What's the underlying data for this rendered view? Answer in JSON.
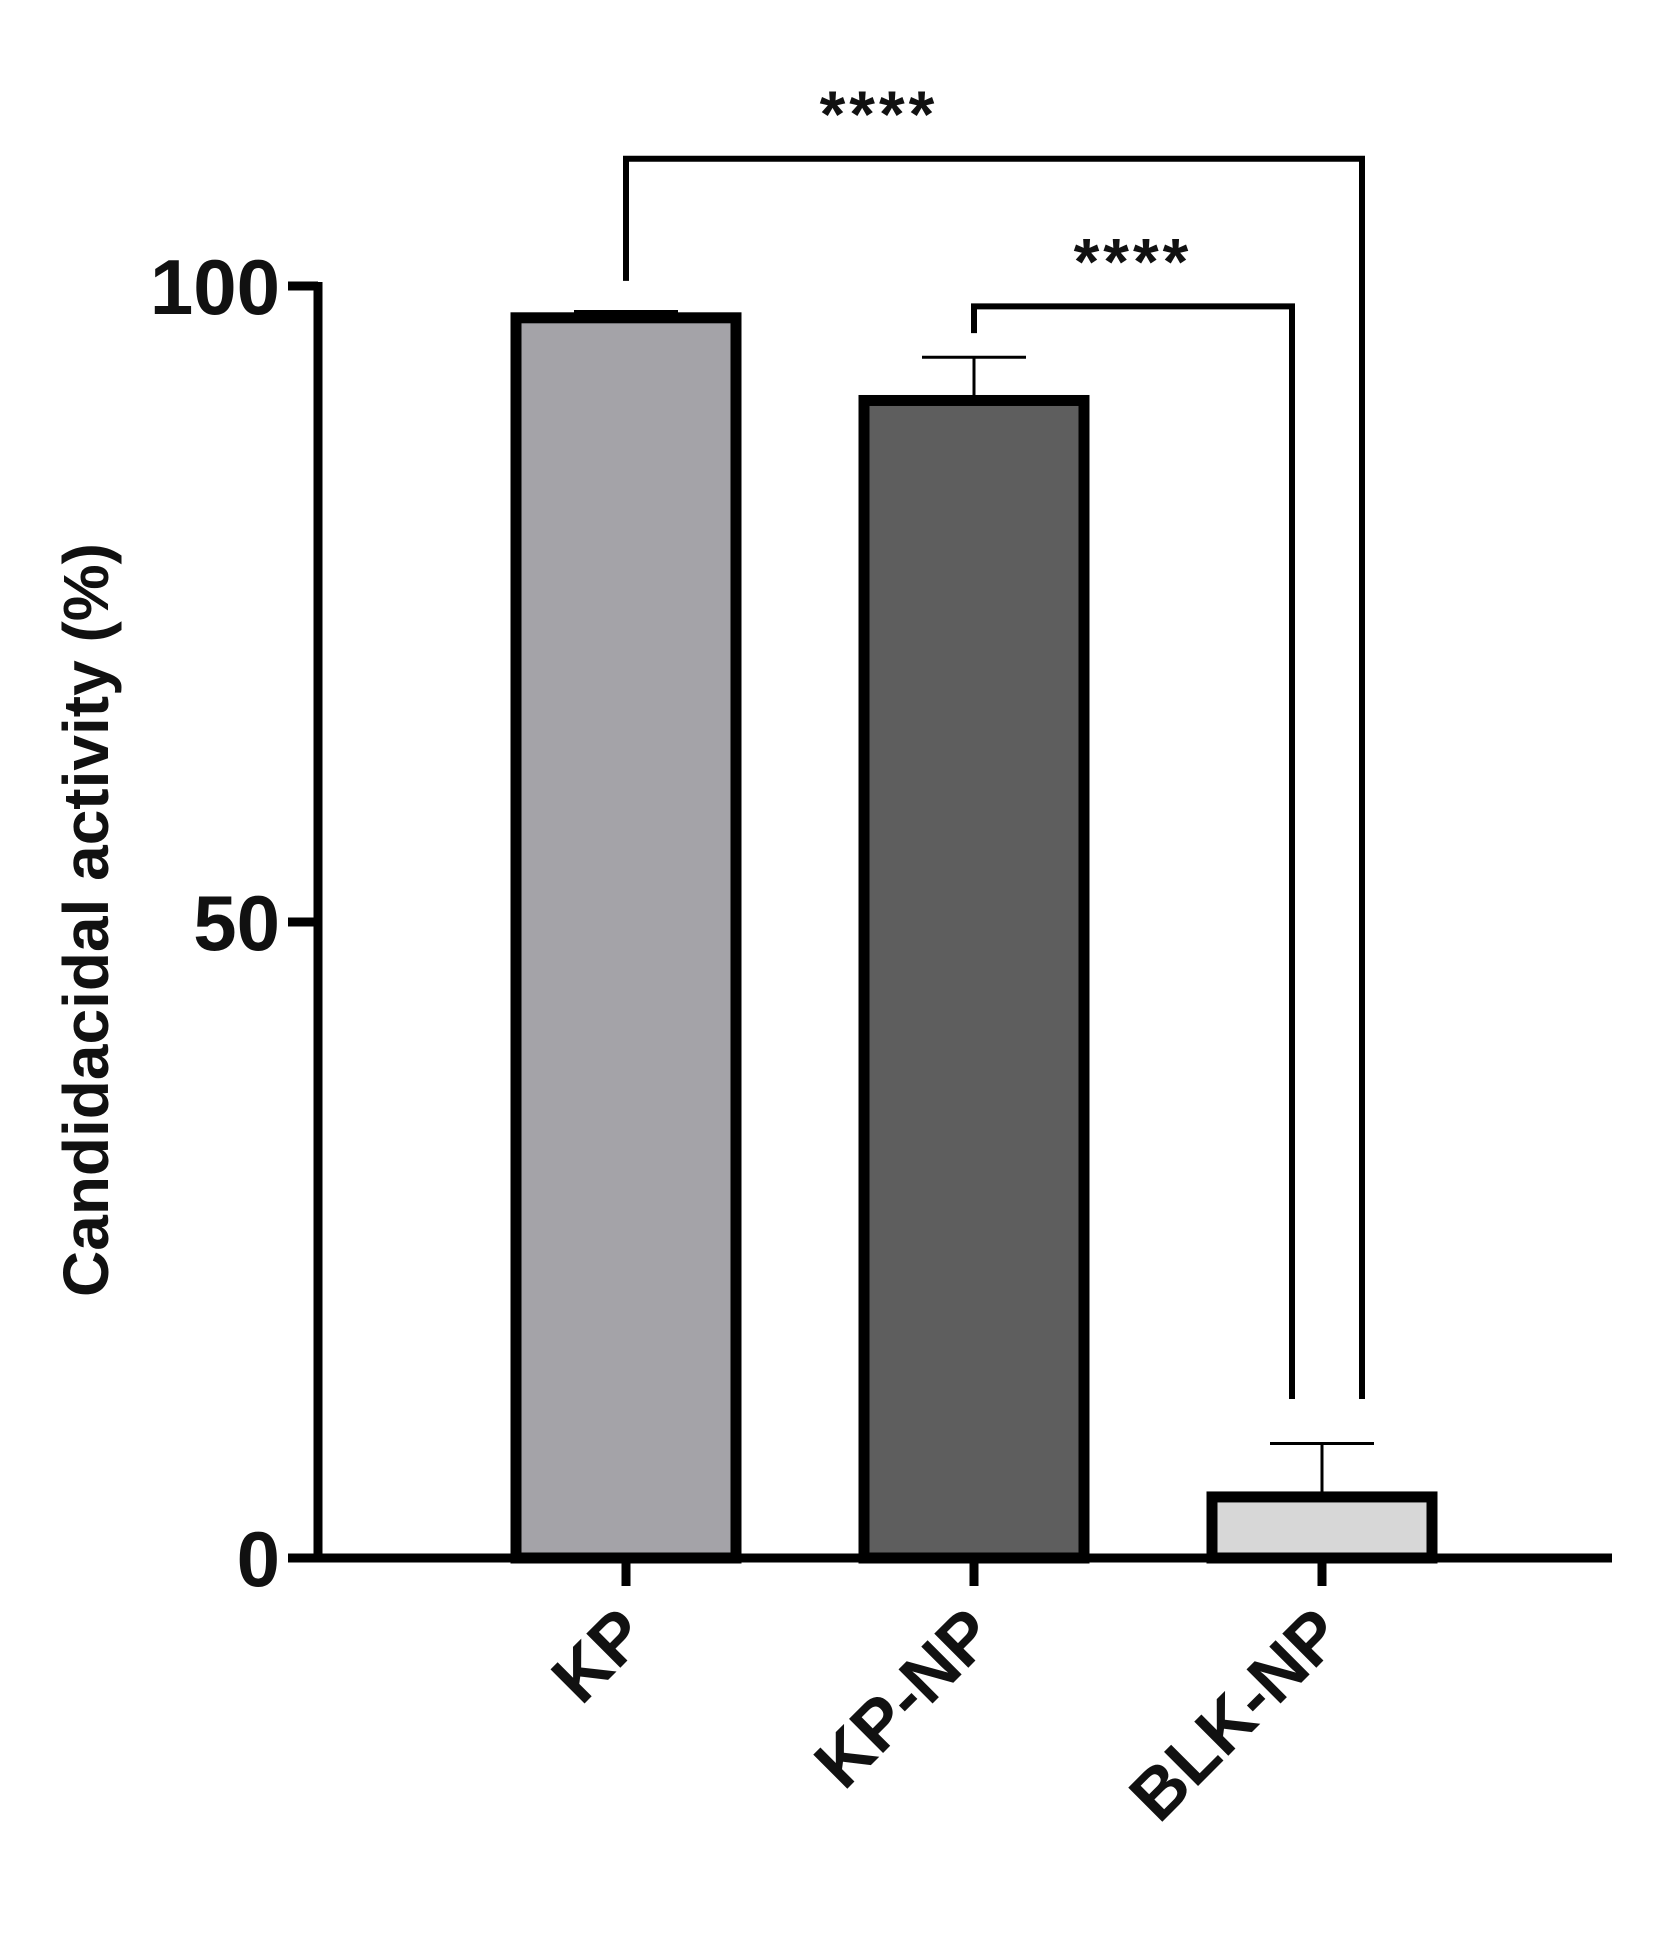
{
  "chart_data": {
    "type": "bar",
    "title": "",
    "xlabel": "",
    "ylabel": "Candidacidal activity (%)",
    "categories": [
      "KP",
      "KP-NP",
      "BLK-NP"
    ],
    "values": [
      97.5,
      91,
      4.8
    ],
    "error_upper": [
      98,
      94.4,
      9
    ],
    "bar_colors": [
      "#a4a3a8",
      "#5e5e5e",
      "#d7d7d7"
    ],
    "bar_outline_color": "#000000",
    "ylim": [
      0,
      100
    ],
    "yticks": [
      "0",
      "50",
      "100"
    ],
    "grid": false,
    "legend": "none",
    "significance": [
      {
        "from": "KP",
        "to": "BLK-NP",
        "label": "****"
      },
      {
        "from": "KP-NP",
        "to": "BLK-NP",
        "label": "****"
      }
    ]
  }
}
